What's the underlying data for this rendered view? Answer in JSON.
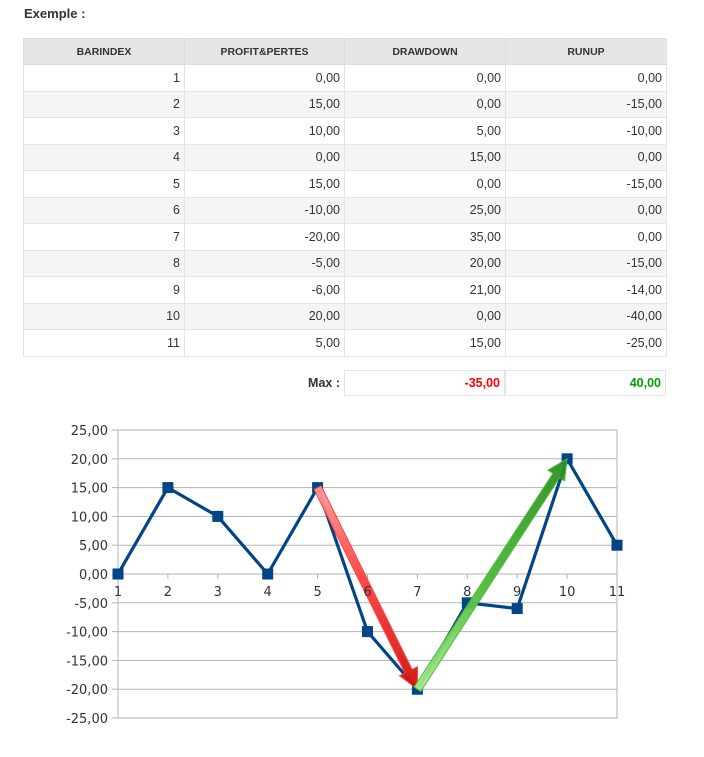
{
  "heading": "Exemple :",
  "table": {
    "headers": [
      "BARINDEX",
      "PROFIT&PERTES",
      "DRAWDOWN",
      "RUNUP"
    ],
    "rows": [
      [
        "1",
        "0,00",
        "0,00",
        "0,00"
      ],
      [
        "2",
        "15,00",
        "0,00",
        "-15,00"
      ],
      [
        "3",
        "10,00",
        "5,00",
        "-10,00"
      ],
      [
        "4",
        "0,00",
        "15,00",
        "0,00"
      ],
      [
        "5",
        "15,00",
        "0,00",
        "-15,00"
      ],
      [
        "6",
        "-10,00",
        "25,00",
        "0,00"
      ],
      [
        "7",
        "-20,00",
        "35,00",
        "0,00"
      ],
      [
        "8",
        "-5,00",
        "20,00",
        "-15,00"
      ],
      [
        "9",
        "-6,00",
        "21,00",
        "-14,00"
      ],
      [
        "10",
        "20,00",
        "0,00",
        "-40,00"
      ],
      [
        "11",
        "5,00",
        "15,00",
        "-25,00"
      ]
    ]
  },
  "max_row": {
    "label": "Max :",
    "drawdown": "-35,00",
    "runup": "40,00",
    "drawdown_color": "#ff0000",
    "runup_color": "#00a000"
  },
  "chart_data": {
    "type": "line",
    "x": [
      1,
      2,
      3,
      4,
      5,
      6,
      7,
      8,
      9,
      10,
      11
    ],
    "series": [
      {
        "values": [
          0,
          15,
          10,
          0,
          15,
          -10,
          -20,
          -5,
          -6,
          20,
          5
        ],
        "color": "#004586",
        "marker": "square"
      }
    ],
    "ylim": [
      -25,
      25
    ],
    "y_ticks": [
      25,
      20,
      15,
      10,
      5,
      0,
      -5,
      -10,
      -15,
      -20,
      -25
    ],
    "y_tick_labels": [
      "25,00",
      "20,00",
      "15,00",
      "10,00",
      "5,00",
      "0,00",
      "-5,00",
      "-10,00",
      "-15,00",
      "-20,00",
      "-25,00"
    ],
    "x_tick_labels": [
      "1",
      "2",
      "3",
      "4",
      "5",
      "6",
      "7",
      "8",
      "9",
      "10",
      "11"
    ],
    "grid": true,
    "legend": "none",
    "annotations": [
      {
        "type": "arrow",
        "from": {
          "x": 5,
          "y": 15
        },
        "to": {
          "x": 7,
          "y": -20
        },
        "color": "#ff3b3b"
      },
      {
        "type": "arrow",
        "from": {
          "x": 7,
          "y": -20
        },
        "to": {
          "x": 10,
          "y": 20
        },
        "color": "#4cbb38"
      }
    ]
  }
}
